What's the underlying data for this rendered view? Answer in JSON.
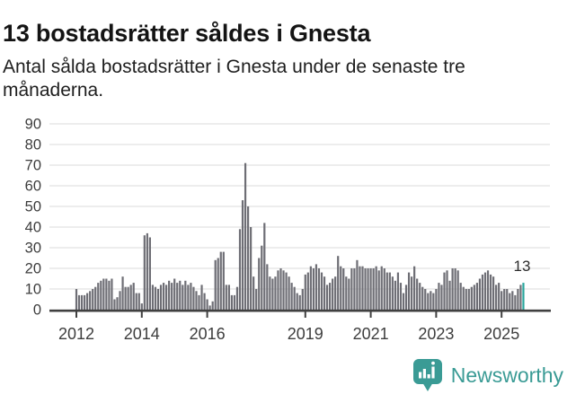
{
  "chart_data": {
    "type": "bar",
    "title": "13 bostadsrätter såldes i Gnesta",
    "subtitle": "Antal sålda bostadsrätter i Gnesta under de senaste tre månaderna.",
    "frequency": "monthly",
    "x_start_month": "2012-01",
    "x_end_month": "2025-09",
    "values": [
      10,
      7,
      7,
      7,
      8,
      9,
      10,
      11,
      13,
      14,
      15,
      15,
      14,
      15,
      5,
      6,
      9,
      16,
      11,
      11,
      12,
      13,
      8,
      8,
      3,
      36,
      37,
      35,
      12,
      11,
      10,
      12,
      13,
      12,
      14,
      13,
      15,
      13,
      14,
      12,
      14,
      12,
      13,
      11,
      9,
      7,
      12,
      8,
      5,
      2,
      4,
      24,
      25,
      28,
      28,
      12,
      12,
      7,
      7,
      11,
      39,
      53,
      71,
      50,
      40,
      16,
      10,
      25,
      31,
      42,
      22,
      16,
      15,
      16,
      19,
      20,
      19,
      18,
      16,
      13,
      11,
      8,
      7,
      10,
      17,
      18,
      21,
      20,
      22,
      20,
      18,
      16,
      12,
      13,
      15,
      16,
      26,
      21,
      20,
      16,
      15,
      20,
      20,
      24,
      21,
      21,
      20,
      20,
      20,
      20,
      21,
      19,
      21,
      20,
      18,
      18,
      16,
      14,
      18,
      13,
      8,
      12,
      18,
      16,
      21,
      15,
      13,
      11,
      10,
      8,
      9,
      8,
      10,
      13,
      12,
      18,
      19,
      14,
      20,
      20,
      19,
      13,
      11,
      10,
      10,
      11,
      12,
      13,
      15,
      17,
      18,
      19,
      17,
      16,
      12,
      13,
      9,
      10,
      10,
      8,
      9,
      7,
      10,
      12,
      13
    ],
    "highlight_last_bar": true,
    "annotation": {
      "text": "13"
    },
    "ylim": [
      0,
      90
    ],
    "yticks": [
      0,
      10,
      20,
      30,
      40,
      50,
      60,
      70,
      80,
      90
    ],
    "xticks": [
      {
        "label": "2012",
        "year": 2012
      },
      {
        "label": "2014",
        "year": 2014
      },
      {
        "label": "2016",
        "year": 2016
      },
      {
        "label": "2019",
        "year": 2019
      },
      {
        "label": "2021",
        "year": 2021
      },
      {
        "label": "2023",
        "year": 2023
      },
      {
        "label": "2025",
        "year": 2025
      }
    ],
    "grid": true,
    "legend": "none",
    "colors": {
      "bar": "#6e6e75",
      "highlight": "#2aa69e",
      "grid": "#e2e2e2",
      "axis": "#404040",
      "tick_label": "#3d3d3d",
      "annotation": "#2b2b2b"
    }
  },
  "footer": {
    "brand": "Newsworthy",
    "brand_color": "#3a9b95",
    "logo_icon": "bar-chart-exclamation-bubble-icon"
  }
}
